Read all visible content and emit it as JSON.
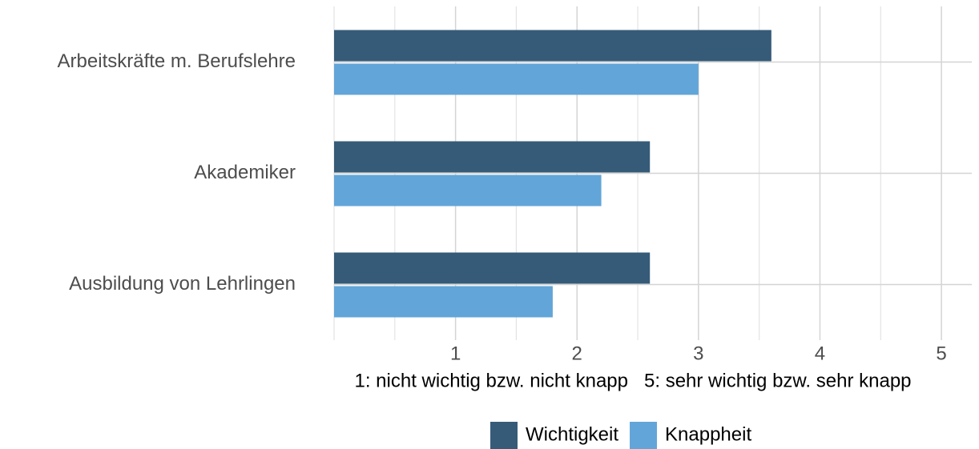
{
  "chart_data": {
    "type": "bar",
    "orientation": "horizontal",
    "categories": [
      "Arbeitskräfte m. Berufslehre",
      "Akademiker",
      "Ausbildung von Lehrlingen"
    ],
    "series": [
      {
        "name": "Wichtigkeit",
        "color": "#365b78",
        "values": [
          3.6,
          2.6,
          2.6
        ]
      },
      {
        "name": "Knappheit",
        "color": "#62a5d8",
        "values": [
          3.0,
          2.2,
          1.8
        ]
      }
    ],
    "x_label": "1: nicht wichtig bzw. nicht knapp   5: sehr wichtig bzw. sehr knapp",
    "xlim": [
      0,
      5.25
    ],
    "xticks": [
      1,
      2,
      3,
      4,
      5
    ],
    "xminorticks": [
      0,
      0.5,
      1.5,
      2.5,
      3.5,
      4.5
    ],
    "grid": true,
    "legend": "bottom"
  }
}
